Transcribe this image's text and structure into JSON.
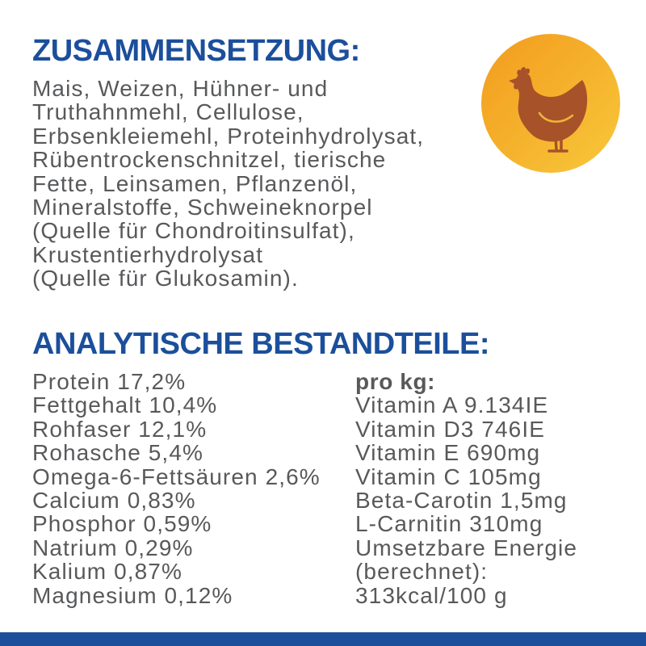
{
  "composition": {
    "heading": "ZUSAMMENSETZUNG:",
    "lines": [
      "Mais, Weizen, Hühner- und",
      "Truthahnmehl, Cellulose,",
      "Erbsenkleiemehl, Proteinhydrolysat,",
      "Rübentrockenschnitzel, tierische",
      "Fette, Leinsamen, Pflanzenöl,",
      "Mineralstoffe, Schweineknorpel",
      "(Quelle für Chondroitinsulfat),",
      "Krustentierhydrolysat",
      "(Quelle für Glukosamin)."
    ]
  },
  "badge": {
    "icon": "chicken-icon"
  },
  "analysis": {
    "heading": "ANALYTISCHE BESTANDTEILE:",
    "nutrients": [
      "Protein 17,2%",
      "Fettgehalt 10,4%",
      "Rohfaser 12,1%",
      "Rohasche 5,4%",
      "Omega-6-Fettsäuren 2,6%",
      "Calcium 0,83%",
      "Phosphor 0,59%",
      "Natrium 0,29%",
      "Kalium 0,87%",
      "Magnesium 0,12%"
    ],
    "per_kg": {
      "label": "pro kg:",
      "lines": [
        "Vitamin A 9.134IE",
        "Vitamin D3 746IE",
        "Vitamin E 690mg",
        "Vitamin C 105mg",
        "Beta-Carotin 1,5mg",
        "L-Carnitin 310mg",
        "Umsetzbare Energie",
        "(berechnet):",
        "313kcal/100 g"
      ]
    }
  },
  "colors": {
    "heading": "#1b4f9c",
    "text": "#58595b",
    "badge_start": "#f29b1e",
    "badge_end": "#f8c83a",
    "chicken": "#a8522a",
    "bar": "#1b4f9c"
  }
}
